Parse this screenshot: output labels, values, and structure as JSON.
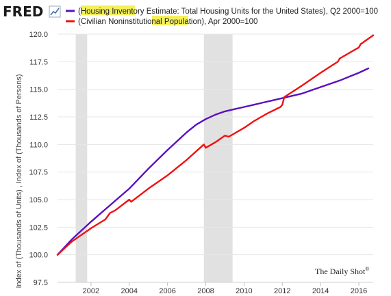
{
  "branding": {
    "logo": "FRED",
    "logo_icon": "line-chart-icon",
    "credit": "The Daily Shot",
    "credit_mark": "®"
  },
  "legend": [
    {
      "color": "#5b0fbf",
      "prefix": "(",
      "highlight": "Housing Inventory",
      "suffix": " Estimate: Total Housing Units for the United States), Q2 2000=100"
    },
    {
      "color": "#ee1111",
      "prefix": "(Civilian Noninstitutional ",
      "highlight": "Population",
      "suffix": "), Apr 2000=100"
    }
  ],
  "chart_data": {
    "type": "line",
    "ylabel": "Index of (Thousands of Units) , Index of (Thousands of Persons)",
    "xlabel": "",
    "xlim": [
      2000.25,
      2016.75
    ],
    "ylim": [
      97.5,
      120.0
    ],
    "grid": true,
    "y_ticks": [
      "97.5",
      "100.0",
      "102.5",
      "105.0",
      "107.5",
      "110.0",
      "112.5",
      "115.0",
      "117.5",
      "120.0"
    ],
    "x_ticks": [
      "2002",
      "2004",
      "2006",
      "2008",
      "2010",
      "2012",
      "2014",
      "2016"
    ],
    "recessions": [
      [
        2001.2,
        2001.8
      ],
      [
        2007.9,
        2009.4
      ]
    ],
    "series": [
      {
        "name": "(Housing Inventory Estimate: Total Housing Units for the United States), Q2 2000=100",
        "color": "#5b0fbf",
        "x": [
          2000.25,
          2001.0,
          2002.0,
          2003.0,
          2004.0,
          2005.0,
          2006.0,
          2007.0,
          2007.5,
          2008.0,
          2008.5,
          2009.0,
          2009.5,
          2010.0,
          2010.5,
          2011.0,
          2011.5,
          2012.0,
          2013.0,
          2014.0,
          2015.0,
          2016.0,
          2016.5
        ],
        "values": [
          100.0,
          101.4,
          103.0,
          104.5,
          106.0,
          107.8,
          109.5,
          111.1,
          111.8,
          112.3,
          112.7,
          113.0,
          113.2,
          113.4,
          113.6,
          113.8,
          114.0,
          114.2,
          114.6,
          115.2,
          115.8,
          116.5,
          116.9
        ]
      },
      {
        "name": "(Civilian Noninstitutional Population), Apr 2000=100",
        "color": "#ee1111",
        "x": [
          2000.25,
          2001.0,
          2002.0,
          2002.75,
          2003.0,
          2003.25,
          2004.0,
          2004.1,
          2005.0,
          2006.0,
          2007.0,
          2007.9,
          2008.0,
          2008.5,
          2009.0,
          2009.2,
          2010.0,
          2010.5,
          2011.0,
          2011.2,
          2011.9,
          2012.0,
          2012.1,
          2013.0,
          2014.0,
          2014.9,
          2015.0,
          2015.3,
          2016.0,
          2016.1,
          2016.75
        ],
        "values": [
          100.0,
          101.2,
          102.4,
          103.2,
          103.8,
          104.0,
          105.0,
          104.8,
          106.0,
          107.2,
          108.6,
          110.0,
          109.7,
          110.2,
          110.8,
          110.7,
          111.5,
          112.1,
          112.6,
          112.8,
          113.4,
          113.6,
          114.3,
          115.3,
          116.5,
          117.5,
          117.8,
          118.1,
          118.8,
          119.1,
          119.9
        ]
      }
    ]
  }
}
